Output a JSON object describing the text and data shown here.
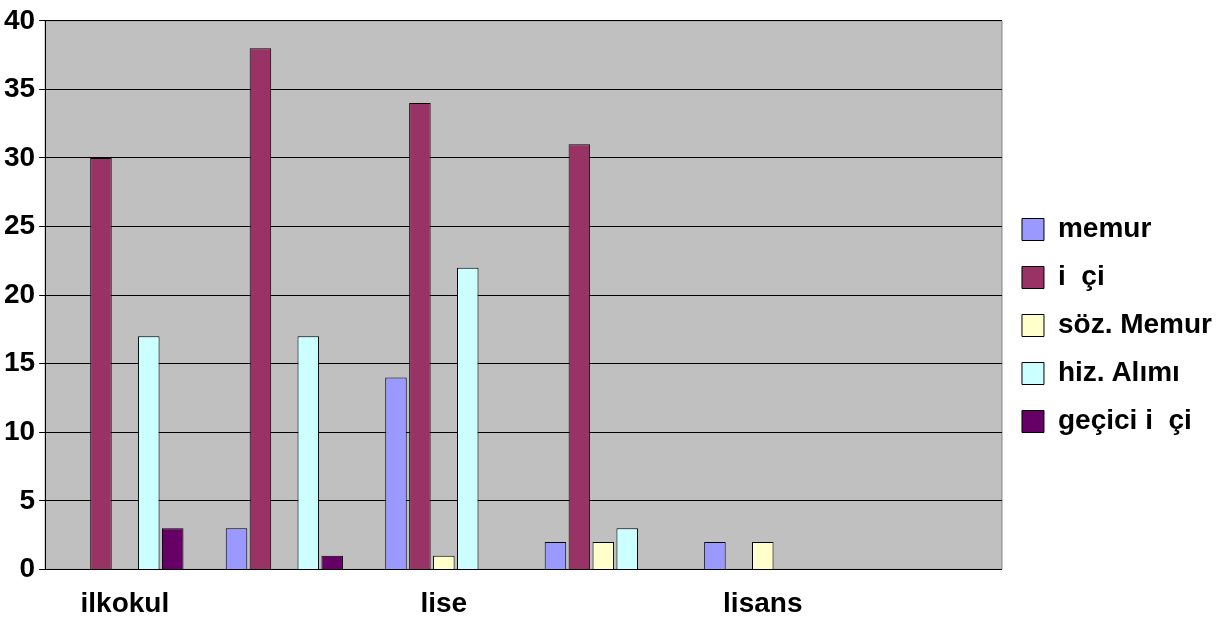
{
  "chart_data": {
    "type": "bar",
    "categories": [
      "ilkokul",
      null,
      "lise",
      null,
      "lisans",
      null
    ],
    "series": [
      {
        "name": "memur",
        "color": "#9999ff",
        "values": [
          0,
          3,
          14,
          2,
          2,
          0
        ]
      },
      {
        "name": "i  çi",
        "color": "#993366",
        "values": [
          30,
          38,
          34,
          31,
          0,
          0
        ]
      },
      {
        "name": "söz. Memur",
        "color": "#ffffcc",
        "values": [
          0,
          0,
          1,
          2,
          2,
          0
        ]
      },
      {
        "name": "hiz. Alımı",
        "color": "#ccffff",
        "values": [
          17,
          17,
          22,
          3,
          0,
          0
        ]
      },
      {
        "name": "geçici i  çi",
        "color": "#660066",
        "values": [
          3,
          1,
          0,
          0,
          0,
          0
        ]
      }
    ],
    "ylim": [
      0,
      40
    ],
    "yticks": [
      0,
      5,
      10,
      15,
      20,
      25,
      30,
      35,
      40
    ],
    "grid": "y",
    "legend": "right"
  }
}
